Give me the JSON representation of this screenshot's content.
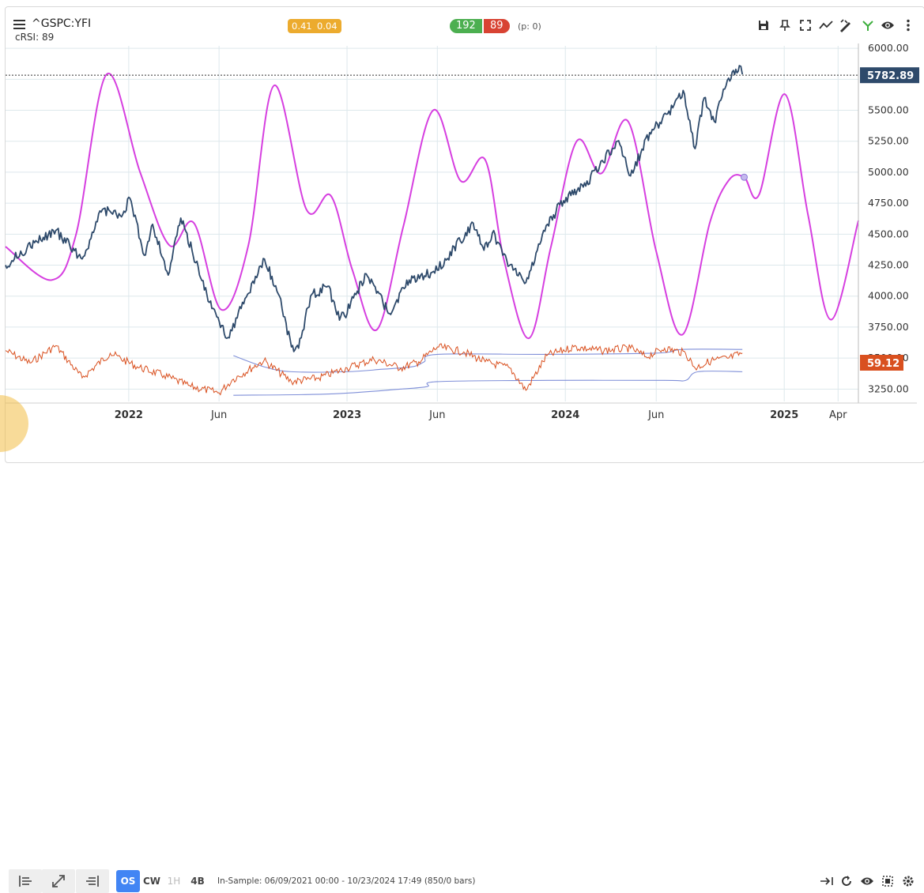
{
  "header": {
    "symbol": "^GSPC:YFI",
    "subtitle": "cRSI: 89",
    "metric_a": "0.41",
    "metric_b": "0.04",
    "count_green": "192",
    "count_red": "89",
    "p_value": "(p: 0)"
  },
  "toolbar_icons": [
    "save-icon",
    "pin-icon",
    "fullscreen-icon",
    "trend-icon",
    "draw-icon",
    "fork-icon",
    "eye-icon",
    "more-icon"
  ],
  "footer": {
    "modes": [
      "OS",
      "CW",
      "1H",
      "4B"
    ],
    "insample": "In-Sample: 06/09/2021 00:00 - 10/23/2024 17:49 (850/0 bars)"
  },
  "colors": {
    "price": "#2e4a6b",
    "cycle": "#d63fe0",
    "osc": "#d9501f",
    "band": "#7f8fd8",
    "green": "#4caf50",
    "red": "#d84333",
    "amber": "#ecab2e",
    "accent": "#4285f4"
  },
  "chart_data": {
    "type": "line",
    "x_axis": {
      "ticks": [
        "2022",
        "Jun",
        "2023",
        "Jun",
        "2024",
        "Jun",
        "2025",
        "Apr"
      ],
      "range": [
        "2021-06-09",
        "2025-05-05"
      ]
    },
    "y_axis": {
      "ticks": [
        "6000.00",
        "5750.00",
        "5500.00",
        "5250.00",
        "5000.00",
        "4750.00",
        "4500.00",
        "4250.00",
        "4000.00",
        "3750.00",
        "3500.00",
        "3250.00"
      ],
      "range": [
        3150,
        6020
      ]
    },
    "last_price": "5782.89",
    "osc_value": "59.12",
    "grid": true,
    "series": [
      {
        "type": "price",
        "x": [
          "2021-06-09",
          "2021-07-15",
          "2021-09-01",
          "2021-10-15",
          "2021-11-18",
          "2021-12-20",
          "2022-01-03",
          "2022-01-27",
          "2022-02-10",
          "2022-03-08",
          "2022-03-29",
          "2022-05-20",
          "2022-06-16",
          "2022-07-08",
          "2022-08-16",
          "2022-09-10",
          "2022-09-30",
          "2022-10-12",
          "2022-11-01",
          "2022-11-30",
          "2022-12-15",
          "2022-12-28",
          "2023-02-02",
          "2023-03-13",
          "2023-04-15",
          "2023-06-01",
          "2023-07-31",
          "2023-08-18",
          "2023-09-01",
          "2023-09-25",
          "2023-10-27",
          "2023-11-30",
          "2023-12-29",
          "2024-01-31",
          "2024-03-28",
          "2024-04-19",
          "2024-05-21",
          "2024-06-20",
          "2024-07-16",
          "2024-08-05",
          "2024-08-20",
          "2024-09-06",
          "2024-09-30",
          "2024-10-18",
          "2024-10-23"
        ],
        "y": [
          4250,
          4390,
          4530,
          4300,
          4700,
          4640,
          4790,
          4330,
          4580,
          4170,
          4630,
          3900,
          3666,
          3900,
          4300,
          4000,
          3590,
          3580,
          4000,
          4080,
          3850,
          3840,
          4180,
          3860,
          4130,
          4210,
          4590,
          4370,
          4510,
          4290,
          4110,
          4570,
          4770,
          4880,
          5250,
          4970,
          5320,
          5470,
          5660,
          5190,
          5600,
          5410,
          5760,
          5860,
          5790
        ]
      },
      {
        "type": "cycle",
        "x": [
          "2021-06-09",
          "2021-08-25",
          "2021-10-05",
          "2021-11-25",
          "2022-01-20",
          "2022-03-10",
          "2022-04-20",
          "2022-06-05",
          "2022-07-20",
          "2022-09-01",
          "2022-10-25",
          "2022-12-05",
          "2023-01-10",
          "2023-02-20",
          "2023-04-05",
          "2023-05-25",
          "2023-07-10",
          "2023-08-20",
          "2023-09-20",
          "2023-11-01",
          "2023-12-08",
          "2024-01-20",
          "2024-03-01",
          "2024-04-15",
          "2024-06-01",
          "2024-07-15",
          "2024-08-30",
          "2024-10-01",
          "2024-10-26",
          "2024-11-20",
          "2025-01-02",
          "2025-02-10",
          "2025-03-20",
          "2025-05-05"
        ],
        "y": [
          4400,
          4130,
          4500,
          5790,
          5000,
          4410,
          4590,
          3890,
          4410,
          5700,
          4700,
          4810,
          4210,
          3730,
          4560,
          5500,
          4930,
          5100,
          4300,
          3660,
          4400,
          5250,
          4990,
          5410,
          4360,
          3690,
          4600,
          4940,
          4960,
          4820,
          5630,
          4650,
          3810,
          4610
        ]
      },
      {
        "type": "oscillator",
        "x": [
          "2021-06-09",
          "2021-07-20",
          "2021-09-01",
          "2021-10-15",
          "2021-12-01",
          "2022-01-15",
          "2022-03-01",
          "2022-04-15",
          "2022-06-01",
          "2022-06-25",
          "2022-08-15",
          "2022-09-30",
          "2022-11-15",
          "2023-01-01",
          "2023-02-15",
          "2023-04-01",
          "2023-05-01",
          "2023-06-01",
          "2023-07-15",
          "2023-08-20",
          "2023-09-30",
          "2023-10-27",
          "2023-12-01",
          "2024-01-15",
          "2024-03-01",
          "2024-04-19",
          "2024-05-15",
          "2024-06-15",
          "2024-07-20",
          "2024-08-05",
          "2024-09-01",
          "2024-09-30",
          "2024-10-23"
        ],
        "y": [
          3560,
          3460,
          3600,
          3340,
          3540,
          3430,
          3360,
          3270,
          3220,
          3330,
          3480,
          3310,
          3340,
          3420,
          3490,
          3420,
          3470,
          3590,
          3550,
          3470,
          3420,
          3240,
          3520,
          3590,
          3560,
          3580,
          3510,
          3580,
          3540,
          3420,
          3480,
          3500,
          3540
        ]
      },
      {
        "type": "band_upper",
        "x": [
          "2022-06-25",
          "2022-08-15",
          "2022-09-30",
          "2023-01-01",
          "2023-03-01",
          "2023-04-20",
          "2023-05-10",
          "2023-06-01",
          "2023-12-01",
          "2024-06-01",
          "2024-07-15",
          "2024-10-23"
        ],
        "y": [
          3520,
          3430,
          3390,
          3390,
          3410,
          3430,
          3470,
          3530,
          3530,
          3540,
          3570,
          3570
        ]
      },
      {
        "type": "band_lower",
        "x": [
          "2022-06-25",
          "2022-12-01",
          "2023-04-01",
          "2023-05-15",
          "2023-06-01",
          "2023-12-01",
          "2024-06-15",
          "2024-07-20",
          "2024-08-10",
          "2024-10-23"
        ],
        "y": [
          3200,
          3210,
          3250,
          3270,
          3310,
          3320,
          3320,
          3320,
          3390,
          3390
        ]
      }
    ]
  }
}
